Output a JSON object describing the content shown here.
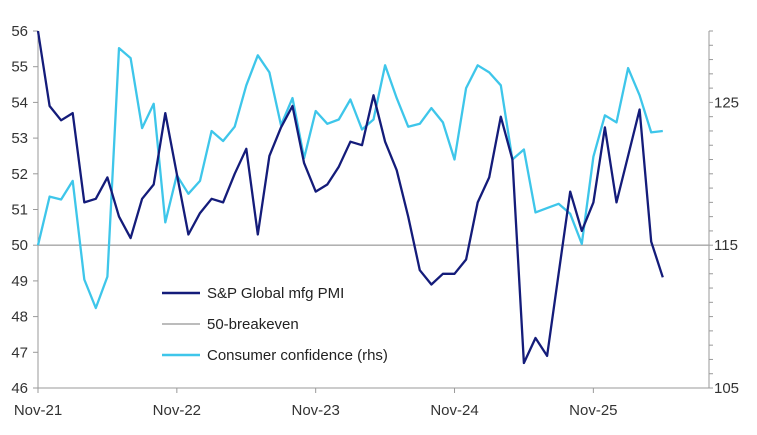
{
  "chart_data": {
    "type": "line",
    "x_labels": [
      "Nov-21",
      "Nov-22",
      "Nov-23",
      "Nov-24",
      "Nov-25"
    ],
    "x_label_index": [
      0,
      12,
      24,
      36,
      48
    ],
    "y_left": {
      "ticks": [
        "46",
        "47",
        "48",
        "49",
        "50",
        "51",
        "52",
        "53",
        "54",
        "55",
        "56"
      ],
      "ylim": [
        46,
        56
      ]
    },
    "y_right": {
      "ticks": [
        "105",
        "115",
        "125"
      ],
      "ylim": [
        105,
        130
      ]
    },
    "grid": false,
    "legend_placement": "lower-center",
    "series": [
      {
        "name": "S&P Global mfg PMI",
        "axis": "left",
        "color": "#141c7a",
        "values": [
          56.0,
          53.9,
          53.5,
          53.7,
          51.2,
          51.3,
          51.9,
          50.8,
          50.2,
          51.3,
          51.7,
          53.7,
          52.0,
          50.3,
          50.9,
          51.3,
          51.2,
          52.0,
          52.7,
          50.3,
          52.5,
          53.3,
          53.9,
          52.3,
          51.5,
          51.7,
          52.2,
          52.9,
          52.8,
          54.2,
          52.9,
          52.1,
          50.8,
          49.3,
          48.9,
          49.2,
          49.2,
          49.6,
          51.2,
          51.9,
          53.6,
          52.4,
          46.7,
          47.4,
          46.9,
          49.2,
          51.5,
          50.4,
          51.2,
          53.3,
          51.2,
          52.5,
          53.8,
          50.1,
          49.1
        ]
      },
      {
        "name": "50-breakeven",
        "axis": "left",
        "color": "#a6a6a6",
        "values": [
          50,
          50
        ]
      },
      {
        "name": "Consumer confidence (rhs)",
        "axis": "right",
        "color": "#3ec6ea",
        "values": [
          115.0,
          118.4,
          118.2,
          119.5,
          112.6,
          110.6,
          112.8,
          128.8,
          128.1,
          123.2,
          124.9,
          116.6,
          119.9,
          118.6,
          119.5,
          123.0,
          122.3,
          123.3,
          126.2,
          128.3,
          127.1,
          123.4,
          125.3,
          121.1,
          124.4,
          123.5,
          123.8,
          125.2,
          123.1,
          123.8,
          127.6,
          125.3,
          123.3,
          123.5,
          124.6,
          123.6,
          121.0,
          126.0,
          127.6,
          127.1,
          126.2,
          121.0,
          121.7,
          117.3,
          117.6,
          117.9,
          117.2,
          115.1,
          121.2,
          124.1,
          123.6,
          127.4,
          125.5,
          122.9,
          123.0
        ]
      }
    ]
  }
}
